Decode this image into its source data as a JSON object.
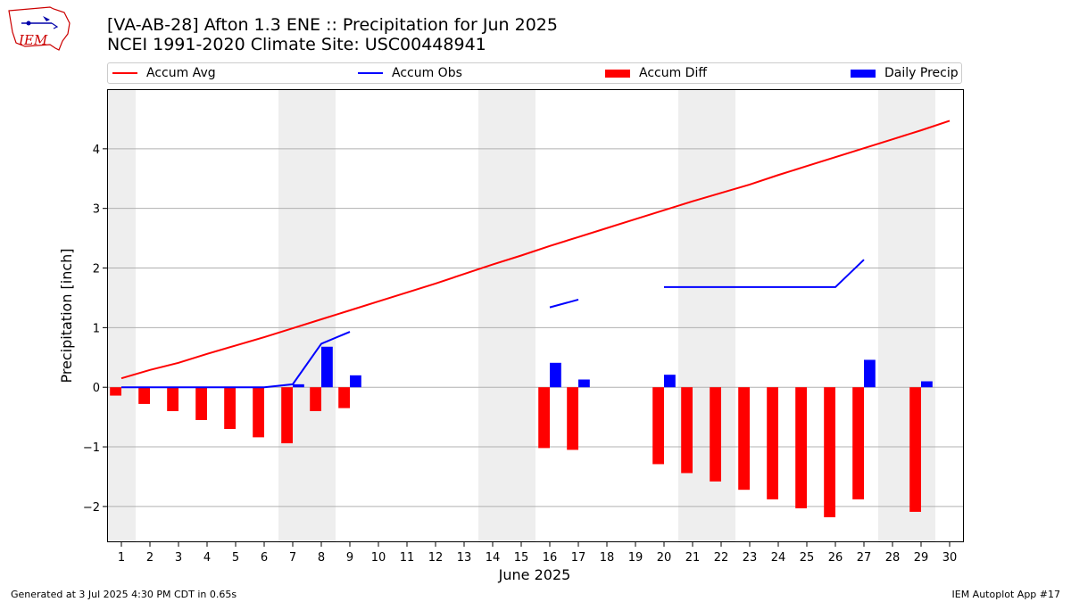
{
  "header": {
    "title_line1": "[VA-AB-28] Afton 1.3 ENE :: Precipitation for Jun 2025",
    "title_line2": "NCEI 1991-2020 Climate Site: USC00448941",
    "logo_text": "IEM"
  },
  "footer": {
    "left": "Generated at 3 Jul 2025 4:30 PM CDT in 0.65s",
    "right": "IEM Autoplot App #17"
  },
  "chart_data": {
    "type": "bar",
    "title": "[VA-AB-28] Afton 1.3 ENE :: Precipitation for Jun 2025",
    "subtitle": "NCEI 1991-2020 Climate Site: USC00448941",
    "xlabel": "June 2025",
    "ylabel": "Precipitation [inch]",
    "ylim": [
      -2.6,
      5.0
    ],
    "yticks": [
      -2,
      -1,
      0,
      1,
      2,
      3,
      4
    ],
    "ytick_labels": [
      "−2",
      "−1",
      "0",
      "1",
      "2",
      "3",
      "4"
    ],
    "xlim": [
      0.5,
      30.5
    ],
    "x": [
      1,
      2,
      3,
      4,
      5,
      6,
      7,
      8,
      9,
      10,
      11,
      12,
      13,
      14,
      15,
      16,
      17,
      18,
      19,
      20,
      21,
      22,
      23,
      24,
      25,
      26,
      27,
      28,
      29,
      30
    ],
    "x_tick_labels": [
      "1",
      "2",
      "3",
      "4",
      "5",
      "6",
      "7",
      "8",
      "9",
      "10",
      "11",
      "12",
      "13",
      "14",
      "15",
      "16",
      "17",
      "18",
      "19",
      "20",
      "21",
      "22",
      "23",
      "24",
      "25",
      "26",
      "27",
      "28",
      "29",
      "30"
    ],
    "weekend_bands": [
      [
        0.5,
        1.5
      ],
      [
        6.5,
        8.5
      ],
      [
        13.5,
        15.5
      ],
      [
        20.5,
        22.5
      ],
      [
        27.5,
        29.5
      ]
    ],
    "grid": true,
    "legend_placement": "top",
    "series": [
      {
        "name": "Accum Avg",
        "kind": "line",
        "color": "#ff0000",
        "values": [
          0.15,
          0.29,
          0.41,
          0.56,
          0.7,
          0.84,
          0.99,
          1.14,
          1.29,
          1.44,
          1.59,
          1.74,
          1.9,
          2.06,
          2.21,
          2.37,
          2.52,
          2.67,
          2.82,
          2.97,
          3.12,
          3.26,
          3.4,
          3.56,
          3.71,
          3.86,
          4.01,
          4.16,
          4.31,
          4.47
        ]
      },
      {
        "name": "Accum Obs",
        "kind": "line",
        "color": "#0000ff",
        "values": [
          0,
          0,
          0,
          0,
          0,
          0,
          0.05,
          0.73,
          0.93,
          null,
          null,
          null,
          null,
          null,
          null,
          1.34,
          1.47,
          null,
          null,
          1.68,
          1.68,
          1.68,
          1.68,
          1.68,
          1.68,
          1.68,
          2.14,
          null,
          null,
          null
        ]
      },
      {
        "name": "Accum Diff",
        "kind": "bar",
        "color": "#ff0000",
        "values": [
          -0.14,
          -0.28,
          -0.4,
          -0.55,
          -0.7,
          -0.84,
          -0.94,
          -0.4,
          -0.35,
          null,
          null,
          null,
          null,
          null,
          null,
          -1.02,
          -1.05,
          null,
          null,
          -1.29,
          -1.44,
          -1.58,
          -1.72,
          -1.88,
          -2.03,
          -2.18,
          -1.88,
          null,
          -2.09,
          null
        ]
      },
      {
        "name": "Daily Precip",
        "kind": "bar",
        "color": "#0000ff",
        "values": [
          0,
          0,
          0,
          0,
          0,
          0,
          0.05,
          0.68,
          0.2,
          null,
          null,
          null,
          null,
          null,
          null,
          0.41,
          0.13,
          null,
          null,
          0.21,
          0,
          0,
          0,
          0,
          0,
          0,
          0.46,
          null,
          0.1,
          null
        ]
      }
    ]
  }
}
